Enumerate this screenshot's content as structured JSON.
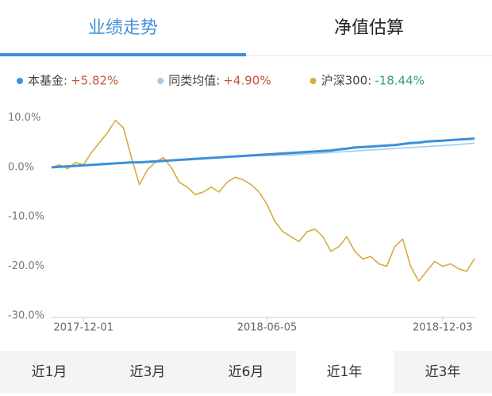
{
  "tabs": [
    "业绩走势",
    "净值估算"
  ],
  "range_tabs": [
    "近1月",
    "近3月",
    "近6月",
    "近1年",
    "近3年"
  ],
  "chart_data": {
    "type": "line",
    "categories": [
      null,
      null,
      null,
      null,
      "2017-12-01",
      null,
      null,
      null,
      null,
      null,
      null,
      null,
      null,
      null,
      null,
      null,
      null,
      null,
      null,
      null,
      null,
      null,
      null,
      null,
      null,
      null,
      null,
      "2018-06-05",
      null,
      null,
      null,
      null,
      null,
      null,
      null,
      null,
      null,
      null,
      null,
      null,
      null,
      null,
      null,
      null,
      null,
      null,
      null,
      null,
      null,
      "2018-12-03",
      null,
      null,
      null,
      null
    ],
    "ylim": [
      -30,
      12
    ],
    "yticks": [
      {
        "value": 10,
        "label": "10.0%"
      },
      {
        "value": 0,
        "label": "0.0%"
      },
      {
        "value": -10,
        "label": "-10.0%"
      },
      {
        "value": -20,
        "label": "-20.0%"
      },
      {
        "value": -30,
        "label": "-30.0%"
      }
    ],
    "grid": false,
    "series": [
      {
        "name": "本基金:",
        "label": "+5.82%",
        "color": "#3d8fd8",
        "label_color": "#c0573c",
        "values": [
          0,
          0.1,
          0.2,
          0.3,
          0.4,
          0.5,
          0.6,
          0.7,
          0.8,
          0.9,
          1.0,
          1.0,
          1.1,
          1.2,
          1.3,
          1.4,
          1.5,
          1.6,
          1.7,
          1.8,
          1.9,
          2.0,
          2.1,
          2.2,
          2.3,
          2.4,
          2.5,
          2.6,
          2.7,
          2.8,
          2.9,
          3.0,
          3.1,
          3.2,
          3.3,
          3.4,
          3.6,
          3.8,
          4.0,
          4.1,
          4.2,
          4.3,
          4.4,
          4.5,
          4.7,
          4.9,
          5.0,
          5.2,
          5.3,
          5.4,
          5.5,
          5.6,
          5.7,
          5.82
        ]
      },
      {
        "name": "同类均值:",
        "label": "+4.90%",
        "color": "#a3cde9",
        "label_color": "#c0573c",
        "values": [
          0,
          0.1,
          0.2,
          0.3,
          0.4,
          0.5,
          0.6,
          0.7,
          0.8,
          0.9,
          1.0,
          1.1,
          1.2,
          1.3,
          1.4,
          1.5,
          1.6,
          1.7,
          1.8,
          1.9,
          2.0,
          2.1,
          2.2,
          2.2,
          2.2,
          2.3,
          2.3,
          2.4,
          2.4,
          2.5,
          2.5,
          2.6,
          2.7,
          2.8,
          2.9,
          3.0,
          3.1,
          3.2,
          3.3,
          3.4,
          3.5,
          3.6,
          3.7,
          3.8,
          3.9,
          4.0,
          4.1,
          4.2,
          4.3,
          4.4,
          4.5,
          4.6,
          4.75,
          4.9
        ]
      },
      {
        "name": "沪深300:",
        "label": "-18.44%",
        "color": "#d6ac3e",
        "label_color": "#3a9c7c",
        "values": [
          0,
          0.5,
          -0.3,
          1,
          0.5,
          3,
          5,
          7,
          9.5,
          8,
          2,
          -3.5,
          -0.5,
          1,
          2,
          0,
          -3,
          -4,
          -5.5,
          -5,
          -4,
          -5,
          -3,
          -2,
          -2.5,
          -3.5,
          -5,
          -7.5,
          -11,
          -13,
          -14,
          -15,
          -13,
          -12.5,
          -14,
          -17,
          -16,
          -14,
          -17,
          -18.5,
          -18,
          -19.5,
          -20,
          -16,
          -14.5,
          -20,
          -23,
          -21,
          -19,
          -20,
          -19.5,
          -20.5,
          -21,
          -18.44
        ]
      }
    ]
  }
}
